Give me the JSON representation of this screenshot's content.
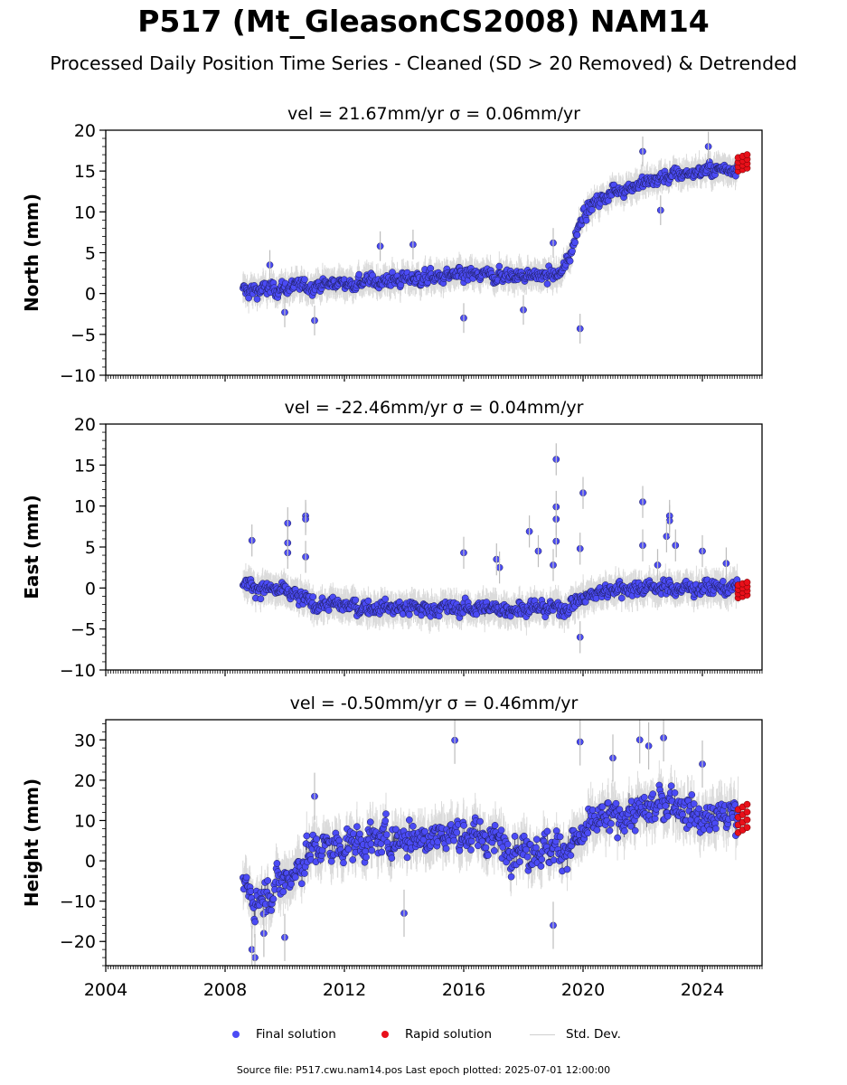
{
  "figure": {
    "title": "P517 (Mt_GleasonCS2008) NAM14",
    "subtitle": "Processed Daily Position Time Series - Cleaned (SD > 20 Removed) & Detrended",
    "footer": "Source file: P517.cwu.nam14.pos  Last epoch plotted: 2025-07-01 12:00:00"
  },
  "legend": {
    "final": "Final solution",
    "rapid": "Rapid solution",
    "stddev": "Std. Dev."
  },
  "colors": {
    "final": "#4b4bf5",
    "rapid": "#e8101a",
    "stddev": "#bdbdbd"
  },
  "chart_data": [
    {
      "type": "scatter",
      "title": "vel = 21.67mm/yr   σ = 0.06mm/yr",
      "ylabel": "North (mm)",
      "xlabel": "",
      "xlim": [
        2004,
        2026
      ],
      "ylim": [
        -10,
        20
      ],
      "yticks": [
        -10,
        -5,
        0,
        5,
        10,
        15,
        20
      ],
      "xticks": [
        2004,
        2008,
        2012,
        2016,
        2020,
        2024
      ],
      "show_xticklabels": false,
      "grid": false,
      "trend": [
        [
          2008.6,
          0.3
        ],
        [
          2012.0,
          1.3
        ],
        [
          2016.0,
          2.2
        ],
        [
          2019.2,
          2.2
        ],
        [
          2019.5,
          4.0
        ],
        [
          2020.0,
          10.0
        ],
        [
          2021.0,
          12.5
        ],
        [
          2022.0,
          13.5
        ],
        [
          2023.0,
          14.5
        ],
        [
          2024.0,
          15.0
        ],
        [
          2025.3,
          15.5
        ]
      ],
      "noise": 1.0,
      "errbar": 1.4,
      "rapid": {
        "x": [
          2025.2,
          2025.5
        ],
        "y": [
          15.0,
          17.0
        ]
      },
      "outliers": [
        [
          2009.5,
          3.5
        ],
        [
          2010.0,
          -2.3
        ],
        [
          2011.0,
          -3.3
        ],
        [
          2013.2,
          5.8
        ],
        [
          2014.3,
          6.0
        ],
        [
          2016.0,
          -3.0
        ],
        [
          2018.0,
          -2.0
        ],
        [
          2019.0,
          6.2
        ],
        [
          2019.9,
          -4.3
        ],
        [
          2022.0,
          17.4
        ],
        [
          2022.6,
          10.2
        ],
        [
          2024.2,
          18.0
        ]
      ]
    },
    {
      "type": "scatter",
      "title": "vel = -22.46mm/yr   σ = 0.04mm/yr",
      "ylabel": "East (mm)",
      "xlabel": "",
      "xlim": [
        2004,
        2026
      ],
      "ylim": [
        -10,
        20
      ],
      "yticks": [
        -10,
        -5,
        0,
        5,
        10,
        15,
        20
      ],
      "xticks": [
        2004,
        2008,
        2012,
        2016,
        2020,
        2024
      ],
      "show_xticklabels": false,
      "grid": false,
      "trend": [
        [
          2008.6,
          0.5
        ],
        [
          2010.0,
          -0.5
        ],
        [
          2011.0,
          -2.0
        ],
        [
          2014.0,
          -2.5
        ],
        [
          2017.0,
          -2.5
        ],
        [
          2019.3,
          -2.5
        ],
        [
          2020.0,
          -1.3
        ],
        [
          2021.0,
          0.0
        ],
        [
          2023.0,
          0.0
        ],
        [
          2025.3,
          0.0
        ]
      ],
      "noise": 1.1,
      "errbar": 1.5,
      "rapid": {
        "x": [
          2025.2,
          2025.5
        ],
        "y": [
          -1.2,
          0.7
        ]
      },
      "outliers": [
        [
          2008.9,
          5.8
        ],
        [
          2010.1,
          7.9
        ],
        [
          2010.1,
          5.5
        ],
        [
          2010.1,
          4.3
        ],
        [
          2010.7,
          8.8
        ],
        [
          2010.7,
          8.4
        ],
        [
          2010.7,
          3.8
        ],
        [
          2016.0,
          4.3
        ],
        [
          2017.1,
          3.5
        ],
        [
          2017.2,
          2.5
        ],
        [
          2018.2,
          6.9
        ],
        [
          2018.5,
          4.5
        ],
        [
          2019.1,
          15.7
        ],
        [
          2019.1,
          9.9
        ],
        [
          2019.1,
          8.4
        ],
        [
          2019.1,
          5.7
        ],
        [
          2019.0,
          2.8
        ],
        [
          2020.0,
          11.6
        ],
        [
          2019.9,
          4.8
        ],
        [
          2019.9,
          -6.0
        ],
        [
          2022.0,
          10.5
        ],
        [
          2022.0,
          5.2
        ],
        [
          2022.5,
          2.8
        ],
        [
          2022.9,
          8.8
        ],
        [
          2022.9,
          8.2
        ],
        [
          2022.8,
          6.3
        ],
        [
          2023.1,
          5.2
        ],
        [
          2024.0,
          4.5
        ],
        [
          2024.8,
          3.0
        ]
      ]
    },
    {
      "type": "scatter",
      "title": "vel = -0.50mm/yr   σ = 0.46mm/yr",
      "ylabel": "Height (mm)",
      "xlabel": "",
      "xlim": [
        2004,
        2026
      ],
      "ylim": [
        -26,
        35
      ],
      "yticks": [
        -20,
        -10,
        0,
        10,
        20,
        30
      ],
      "xticks": [
        2004,
        2008,
        2012,
        2016,
        2020,
        2024
      ],
      "show_xticklabels": true,
      "grid": false,
      "trend": [
        [
          2008.6,
          -5.0
        ],
        [
          2009.0,
          -10.0
        ],
        [
          2010.0,
          -5.0
        ],
        [
          2011.0,
          3.0
        ],
        [
          2013.0,
          5.0
        ],
        [
          2016.0,
          7.0
        ],
        [
          2018.0,
          3.0
        ],
        [
          2019.5,
          3.0
        ],
        [
          2020.5,
          10.0
        ],
        [
          2022.0,
          12.0
        ],
        [
          2023.0,
          15.0
        ],
        [
          2024.0,
          10.0
        ],
        [
          2025.3,
          12.0
        ]
      ],
      "noise": 5.0,
      "errbar": 4.5,
      "rapid": {
        "x": [
          2025.2,
          2025.5
        ],
        "y": [
          7.0,
          14.0
        ]
      },
      "outliers": [
        [
          2008.9,
          -22.0
        ],
        [
          2009.0,
          -24.0
        ],
        [
          2009.3,
          -18.0
        ],
        [
          2010.0,
          -19.0
        ],
        [
          2011.0,
          16.0
        ],
        [
          2014.0,
          -13.0
        ],
        [
          2015.7,
          29.9
        ],
        [
          2019.0,
          -16.0
        ],
        [
          2019.9,
          29.5
        ],
        [
          2021.0,
          25.5
        ],
        [
          2021.9,
          30.0
        ],
        [
          2022.2,
          28.5
        ],
        [
          2022.7,
          30.5
        ],
        [
          2024.0,
          24.0
        ]
      ]
    }
  ]
}
